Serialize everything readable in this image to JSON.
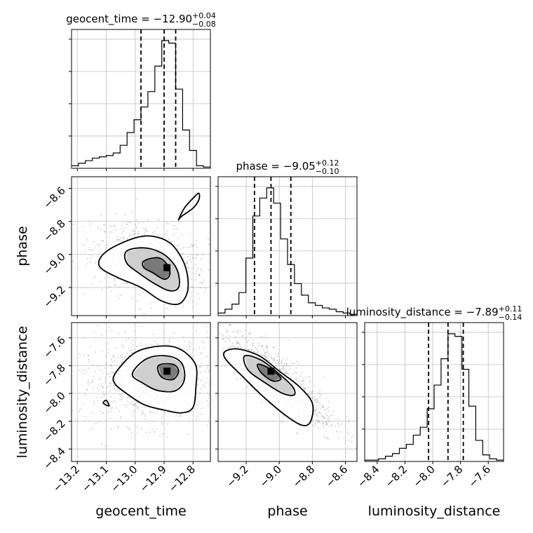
{
  "chart_data": {
    "type": "corner",
    "grid": true,
    "parameters": [
      "geocent_time",
      "phase",
      "luminosity_distance"
    ],
    "titles": [
      {
        "param": "geocent_time",
        "prefix": "geocent_time = −12.90",
        "sup": "+0.04",
        "sub": "−0.08"
      },
      {
        "param": "phase",
        "prefix": "phase = −9.05",
        "sup": "+0.12",
        "sub": "−0.10"
      },
      {
        "param": "luminosity_distance",
        "prefix": "luminosity_distance = −7.89",
        "sup": "+0.11",
        "sub": "−0.14"
      }
    ],
    "ranges": {
      "geocent_time": [
        -13.22,
        -12.74
      ],
      "phase": [
        -9.37,
        -8.53
      ],
      "luminosity_distance": [
        -8.49,
        -7.49
      ]
    },
    "ticks": {
      "geocent_time": [
        -13.2,
        -13.1,
        -13.0,
        -12.9,
        -12.8
      ],
      "phase": [
        -9.2,
        -9.0,
        -8.8,
        -8.6
      ],
      "luminosity_distance": [
        -8.4,
        -8.2,
        -8.0,
        -7.8,
        -7.6
      ]
    },
    "tick_labels": {
      "geocent_time": [
        "−13.2",
        "−13.1",
        "−13.0",
        "−12.9",
        "−12.8"
      ],
      "phase": [
        "−9.2",
        "−9.0",
        "−8.8",
        "−8.6"
      ],
      "luminosity_distance": [
        "−8.4",
        "−8.2",
        "−8.0",
        "−7.8",
        "−7.6"
      ]
    },
    "axis_labels": {
      "geocent_time": "geocent_time",
      "phase": "phase",
      "luminosity_distance": "luminosity_distance"
    },
    "histograms": {
      "geocent_time": {
        "edges": [
          -13.22,
          -13.196,
          -13.172,
          -13.148,
          -13.124,
          -13.1,
          -13.076,
          -13.052,
          -13.028,
          -13.004,
          -12.98,
          -12.956,
          -12.932,
          -12.908,
          -12.884,
          -12.86,
          -12.836,
          -12.812,
          -12.788,
          -12.764,
          -12.74
        ],
        "counts": [
          2,
          4,
          6,
          8,
          9,
          10,
          12,
          18,
          28,
          38,
          48,
          60,
          80,
          100,
          98,
          62,
          30,
          14,
          2,
          1
        ],
        "quantiles": [
          -12.98,
          -12.9,
          -12.86
        ]
      },
      "phase": {
        "edges": [
          -9.37,
          -9.328,
          -9.286,
          -9.244,
          -9.202,
          -9.16,
          -9.118,
          -9.076,
          -9.034,
          -8.992,
          -8.95,
          -8.908,
          -8.866,
          -8.824,
          -8.782,
          -8.74,
          -8.698,
          -8.656,
          -8.614,
          -8.572,
          -8.53
        ],
        "counts": [
          2,
          5,
          9,
          18,
          45,
          78,
          92,
          100,
          88,
          60,
          40,
          25,
          16,
          10,
          8,
          6,
          5,
          3,
          2,
          1
        ],
        "quantiles": [
          -9.15,
          -9.05,
          -8.93
        ]
      },
      "luminosity_distance": {
        "edges": [
          -8.49,
          -8.44,
          -8.39,
          -8.34,
          -8.29,
          -8.24,
          -8.19,
          -8.14,
          -8.09,
          -8.04,
          -7.99,
          -7.94,
          -7.89,
          -7.84,
          -7.79,
          -7.74,
          -7.69,
          -7.64,
          -7.59,
          -7.54,
          -7.49
        ],
        "counts": [
          1,
          1,
          2,
          4,
          6,
          10,
          13,
          20,
          26,
          40,
          58,
          78,
          97,
          95,
          70,
          42,
          16,
          5,
          2,
          1
        ],
        "quantiles": [
          -8.03,
          -7.89,
          -7.78
        ]
      }
    },
    "contour_sets": {
      "phase|geocent_time": {
        "outer": [
          [
            -13.12,
            -9.02
          ],
          [
            -13.08,
            -8.96
          ],
          [
            -13.0,
            -8.9
          ],
          [
            -12.94,
            -8.89
          ],
          [
            -12.88,
            -8.93
          ],
          [
            -12.84,
            -9.02
          ],
          [
            -12.82,
            -9.12
          ],
          [
            -12.82,
            -9.23
          ],
          [
            -12.85,
            -9.3
          ],
          [
            -12.91,
            -9.28
          ],
          [
            -12.98,
            -9.2
          ],
          [
            -13.06,
            -9.14
          ],
          [
            -13.12,
            -9.08
          ]
        ],
        "middle": [
          [
            -13.03,
            -8.98
          ],
          [
            -12.97,
            -8.96
          ],
          [
            -12.91,
            -8.99
          ],
          [
            -12.87,
            -9.05
          ],
          [
            -12.85,
            -9.12
          ],
          [
            -12.85,
            -9.2
          ],
          [
            -12.88,
            -9.22
          ],
          [
            -12.93,
            -9.18
          ],
          [
            -12.99,
            -9.11
          ],
          [
            -13.03,
            -9.05
          ]
        ],
        "inner": [
          [
            -12.97,
            -9.04
          ],
          [
            -12.92,
            -9.02
          ],
          [
            -12.89,
            -9.06
          ],
          [
            -12.88,
            -9.12
          ],
          [
            -12.9,
            -9.15
          ],
          [
            -12.94,
            -9.11
          ],
          [
            -12.97,
            -9.08
          ]
        ],
        "island": [
          [
            -12.84,
            -8.77
          ],
          [
            -12.8,
            -8.72
          ],
          [
            -12.78,
            -8.67
          ],
          [
            -12.78,
            -8.63
          ],
          [
            -12.8,
            -8.66
          ],
          [
            -12.83,
            -8.72
          ],
          [
            -12.85,
            -8.79
          ]
        ],
        "core": [
          -12.89,
          -9.08
        ],
        "cloud_center": [
          -12.95,
          -9.05
        ],
        "cloud_spread": [
          0.1,
          0.12
        ]
      },
      "luminosity_distance|geocent_time": {
        "outer": [
          [
            -13.07,
            -7.86
          ],
          [
            -13.01,
            -7.72
          ],
          [
            -12.95,
            -7.67
          ],
          [
            -12.88,
            -7.66
          ],
          [
            -12.83,
            -7.7
          ],
          [
            -12.79,
            -7.8
          ],
          [
            -12.79,
            -7.95
          ],
          [
            -12.8,
            -8.1
          ],
          [
            -12.84,
            -8.14
          ],
          [
            -12.9,
            -8.12
          ],
          [
            -12.97,
            -8.08
          ],
          [
            -13.03,
            -8.0
          ],
          [
            -13.07,
            -7.93
          ]
        ],
        "middle": [
          [
            -13.01,
            -7.86
          ],
          [
            -12.96,
            -7.75
          ],
          [
            -12.89,
            -7.73
          ],
          [
            -12.84,
            -7.78
          ],
          [
            -12.83,
            -7.9
          ],
          [
            -12.86,
            -7.98
          ],
          [
            -12.92,
            -7.98
          ],
          [
            -12.97,
            -7.93
          ]
        ],
        "inner": [
          [
            -12.92,
            -7.8
          ],
          [
            -12.87,
            -7.79
          ],
          [
            -12.85,
            -7.84
          ],
          [
            -12.87,
            -7.9
          ],
          [
            -12.91,
            -7.88
          ]
        ],
        "island": [
          [
            -13.11,
            -8.07
          ],
          [
            -13.1,
            -8.05
          ],
          [
            -13.09,
            -8.09
          ]
        ],
        "core": [
          -12.89,
          -7.84
        ],
        "cloud_center": [
          -12.95,
          -7.9
        ],
        "cloud_spread": [
          0.12,
          0.16
        ]
      },
      "luminosity_distance|phase": {
        "outer": [
          [
            -9.33,
            -7.7
          ],
          [
            -9.25,
            -7.68
          ],
          [
            -9.12,
            -7.73
          ],
          [
            -9.0,
            -7.84
          ],
          [
            -8.88,
            -7.95
          ],
          [
            -8.8,
            -8.07
          ],
          [
            -8.81,
            -8.2
          ],
          [
            -8.86,
            -8.23
          ],
          [
            -8.96,
            -8.16
          ],
          [
            -9.1,
            -8.02
          ],
          [
            -9.22,
            -7.88
          ],
          [
            -9.32,
            -7.76
          ]
        ],
        "middle": [
          [
            -9.21,
            -7.73
          ],
          [
            -9.11,
            -7.76
          ],
          [
            -9.0,
            -7.86
          ],
          [
            -8.92,
            -7.95
          ],
          [
            -8.91,
            -8.01
          ],
          [
            -8.98,
            -8.0
          ],
          [
            -9.09,
            -7.92
          ],
          [
            -9.19,
            -7.83
          ]
        ],
        "inner": [
          [
            -9.13,
            -7.79
          ],
          [
            -9.06,
            -7.82
          ],
          [
            -8.99,
            -7.89
          ],
          [
            -9.04,
            -7.91
          ],
          [
            -9.11,
            -7.85
          ]
        ],
        "island": [],
        "core": [
          -9.05,
          -7.84
        ],
        "cloud_center": [
          -9.0,
          -7.9
        ],
        "cloud_spread": [
          0.17,
          0.18
        ]
      }
    }
  }
}
